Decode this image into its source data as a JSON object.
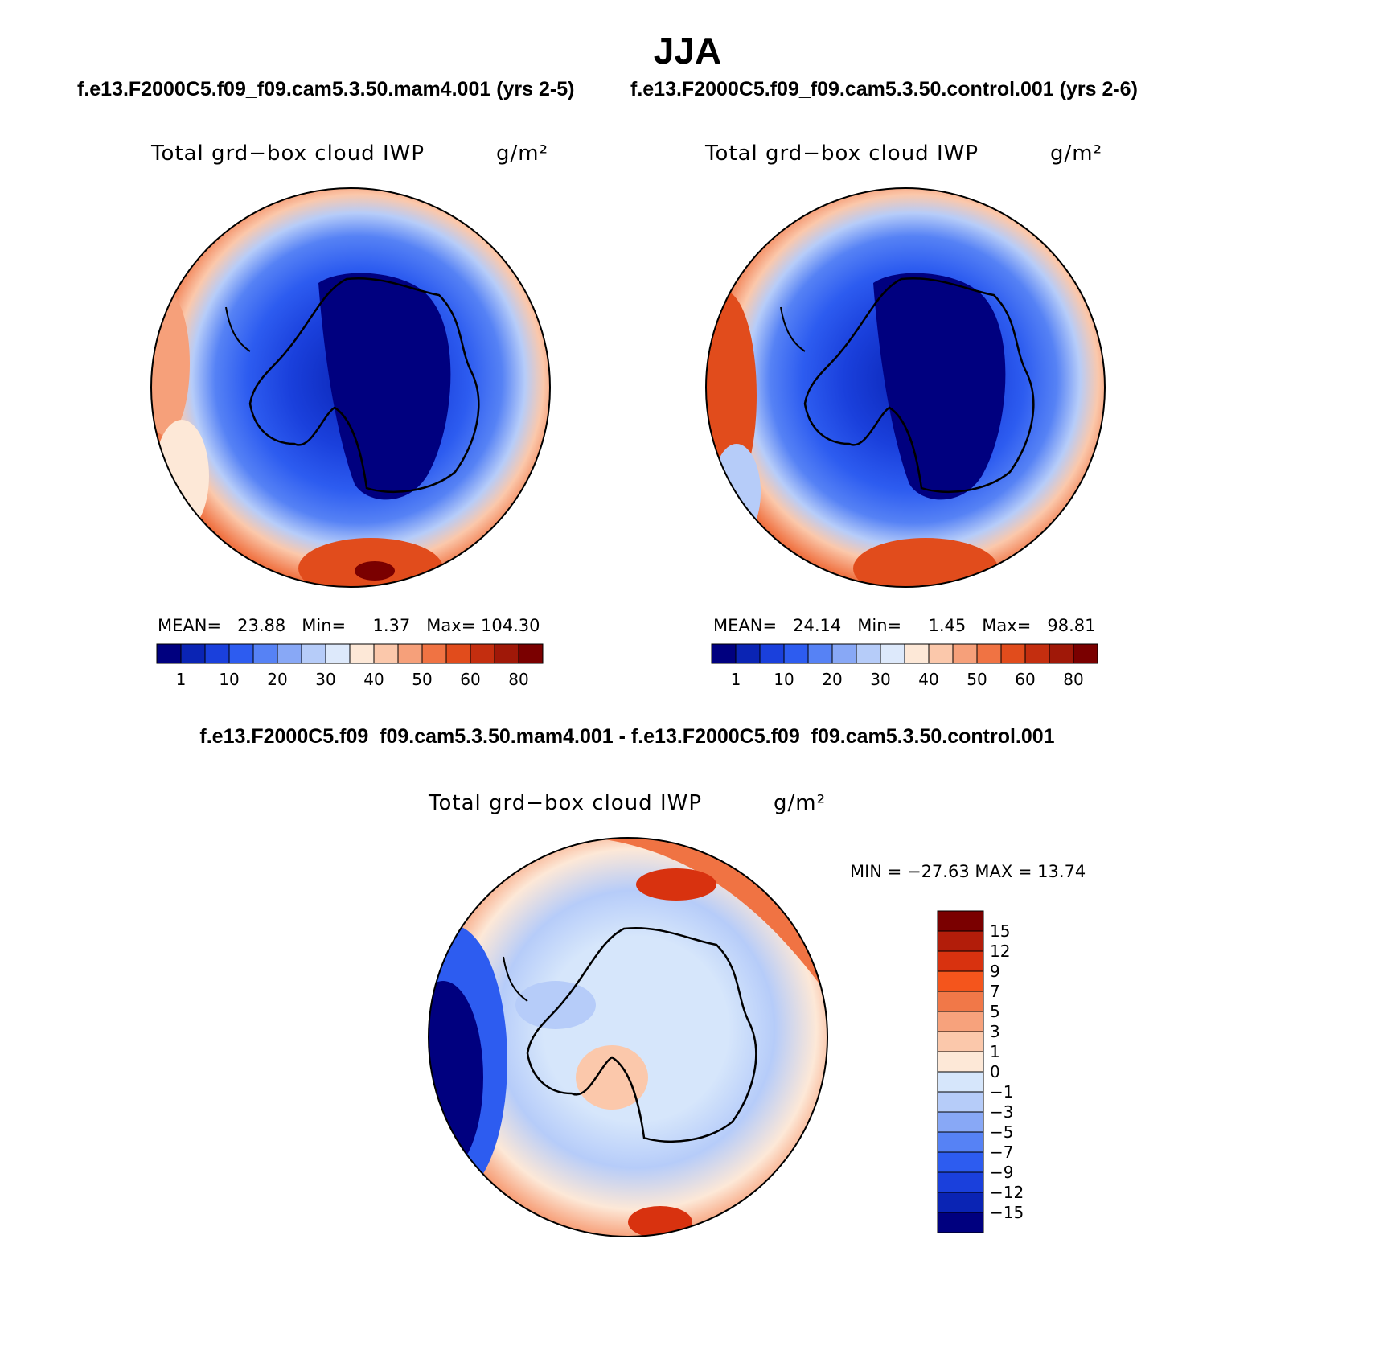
{
  "title": "JJA",
  "case_header": {
    "left": "f.e13.F2000C5.f09_f09.cam5.3.50.mam4.001 (yrs 2-5)",
    "right": "f.e13.F2000C5.f09_f09.cam5.3.50.control.001 (yrs 2-6)"
  },
  "diff_header": "f.e13.F2000C5.f09_f09.cam5.3.50.mam4.001 - f.e13.F2000C5.f09_f09.cam5.3.50.control.001",
  "chart_data": [
    {
      "type": "polar_contour_map",
      "variable": "Total grd−box cloud IWP",
      "units": "g/m²",
      "stats": {
        "mean_label": "MEAN=",
        "mean": "23.88",
        "min_label": "Min=",
        "min": "1.37",
        "max_label": "Max=",
        "max": "104.30"
      },
      "levels": [
        "1",
        "10",
        "20",
        "30",
        "40",
        "50",
        "60",
        "80"
      ],
      "colors": [
        "#00007f",
        "#0a24b4",
        "#1a40dc",
        "#2d5cf0",
        "#5682f5",
        "#88a8f6",
        "#b6ccf9",
        "#dde9fb",
        "#fde8d7",
        "#fbc8ab",
        "#f6a07a",
        "#f07343",
        "#e14c1c",
        "#c42e0f",
        "#a01808",
        "#7a0000"
      ]
    },
    {
      "type": "polar_contour_map",
      "variable": "Total grd−box cloud IWP",
      "units": "g/m²",
      "stats": {
        "mean_label": "MEAN=",
        "mean": "24.14",
        "min_label": "Min=",
        "min": "1.45",
        "max_label": "Max=",
        "max": "98.81"
      },
      "levels": [
        "1",
        "10",
        "20",
        "30",
        "40",
        "50",
        "60",
        "80"
      ],
      "colors": [
        "#00007f",
        "#0a24b4",
        "#1a40dc",
        "#2d5cf0",
        "#5682f5",
        "#88a8f6",
        "#b6ccf9",
        "#dde9fb",
        "#fde8d7",
        "#fbc8ab",
        "#f6a07a",
        "#f07343",
        "#e14c1c",
        "#c42e0f",
        "#a01808",
        "#7a0000"
      ]
    },
    {
      "type": "polar_contour_map",
      "variable": "Total grd−box cloud IWP",
      "units": "g/m²",
      "stats_text": "MIN = −27.63 MAX =   13.74",
      "levels": [
        "15",
        "12",
        "9",
        "7",
        "5",
        "3",
        "1",
        "0",
        "−1",
        "−3",
        "−5",
        "−7",
        "−9",
        "−12",
        "−15"
      ],
      "colors": [
        "#7a0000",
        "#b21d0a",
        "#d8320f",
        "#f4551c",
        "#f17848",
        "#f7a27c",
        "#fbc8ab",
        "#fde8d7",
        "#d6e6fb",
        "#b6ccf9",
        "#88a8f6",
        "#5682f5",
        "#2d5cf0",
        "#1a40dc",
        "#0a24b4",
        "#00007f"
      ]
    }
  ]
}
